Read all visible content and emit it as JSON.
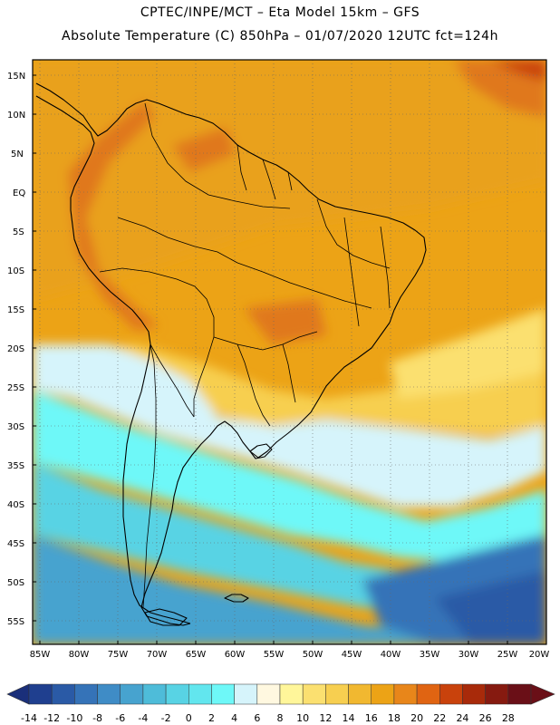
{
  "title_line1": "CPTEC/INPE/MCT –  Eta Model 15km – GFS",
  "title_line2": "Absolute Temperature (C) 850hPa – 01/07/2020 12UTC fct=124h",
  "lat_labels": [
    "15N",
    "10N",
    "5N",
    "EQ",
    "5S",
    "10S",
    "15S",
    "20S",
    "25S",
    "30S",
    "35S",
    "40S",
    "45S",
    "50S",
    "55S"
  ],
  "lon_labels": [
    "85W",
    "80W",
    "75W",
    "70W",
    "65W",
    "60W",
    "55W",
    "50W",
    "45W",
    "40W",
    "35W",
    "30W",
    "25W",
    "20W"
  ],
  "colorbar": {
    "labels": [
      "-14",
      "-12",
      "-10",
      "-8",
      "-6",
      "-4",
      "-2",
      "0",
      "2",
      "4",
      "6",
      "8",
      "10",
      "12",
      "14",
      "16",
      "18",
      "20",
      "22",
      "24",
      "26",
      "28"
    ],
    "colors": [
      "#1f3f8f",
      "#2a5aa6",
      "#3573b8",
      "#3f8cc6",
      "#47a3cf",
      "#4ebcd9",
      "#58d3e4",
      "#62e6ee",
      "#6ef8f8",
      "#d6f4fb",
      "#fff8e0",
      "#fff69a",
      "#fbe070",
      "#f7cf50",
      "#f1b830",
      "#eca316",
      "#e8861a",
      "#e06412",
      "#c9420c",
      "#a82a0a",
      "#861a10",
      "#6a0f17"
    ]
  },
  "map": {
    "variable": "Absolute Temperature (C) 850hPa",
    "lat_range": [
      "55S",
      "15N"
    ],
    "lon_range": [
      "85W",
      "20W"
    ]
  }
}
